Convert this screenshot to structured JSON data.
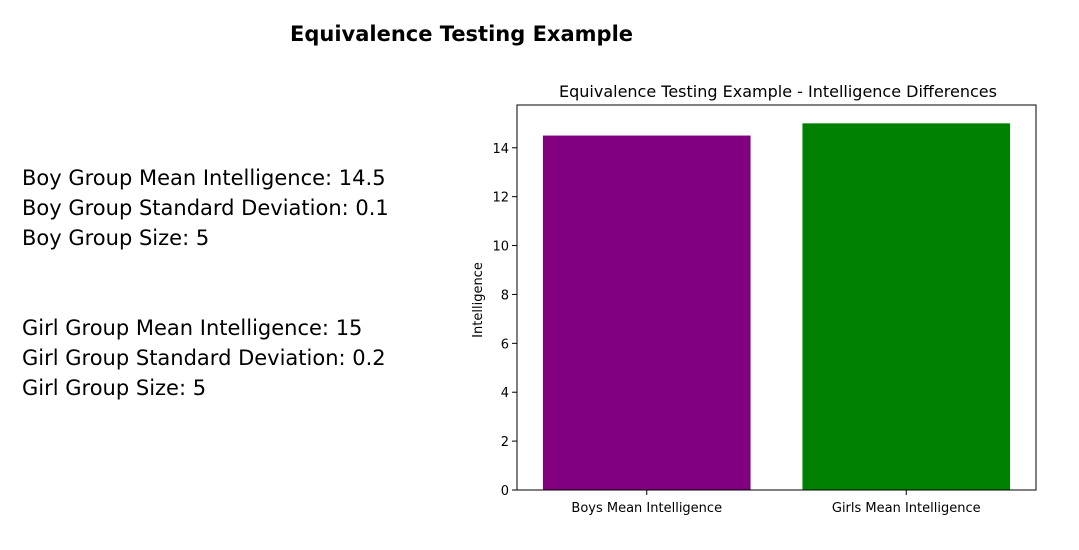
{
  "page": {
    "title": "Equivalence Testing Example"
  },
  "stats": {
    "boy": [
      "Boy Group Mean Intelligence: 14.5",
      "Boy Group Standard Deviation: 0.1",
      "Boy Group Size: 5"
    ],
    "girl": [
      "Girl Group Mean Intelligence: 15",
      "Girl Group Standard Deviation: 0.2",
      "Girl Group Size: 5"
    ]
  },
  "chart_data": {
    "type": "bar",
    "title": "Equivalence Testing Example - Intelligence Differences",
    "xlabel": "",
    "ylabel": "Intelligence",
    "categories": [
      "Boys Mean Intelligence",
      "Girls Mean Intelligence"
    ],
    "values": [
      14.5,
      15
    ],
    "colors": [
      "#800080",
      "#008000"
    ],
    "ylim": [
      0,
      15.75
    ],
    "yticks": [
      0,
      2,
      4,
      6,
      8,
      10,
      12,
      14
    ],
    "grid": false
  }
}
